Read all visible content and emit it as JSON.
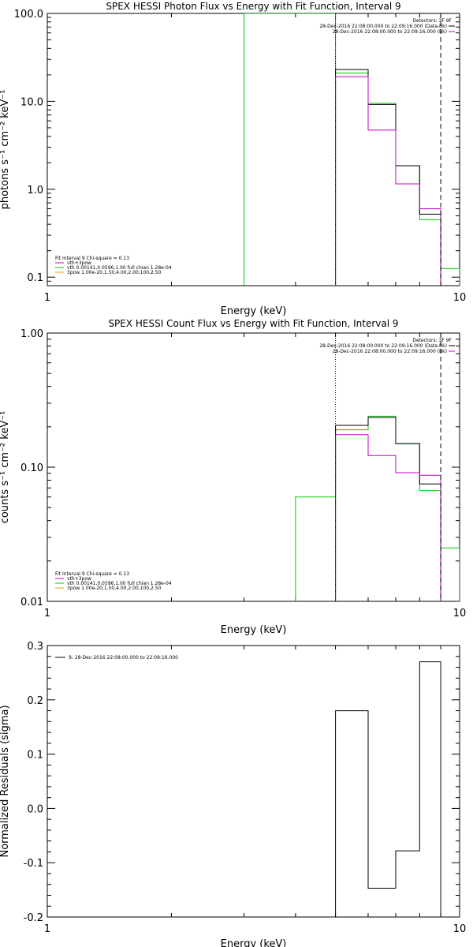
{
  "colors": {
    "black": "#000000",
    "magenta": "#cc00cc",
    "green": "#00cc00",
    "orange": "#ff9900"
  },
  "chart_data": [
    {
      "type": "line",
      "title": "SPEX HESSI Photon Flux vs Energy with Fit Function, Interval 9",
      "xlabel": "Energy (keV)",
      "ylabel": "photons s⁻¹ cm⁻² keV⁻¹",
      "xscale": "log",
      "yscale": "log",
      "xlim": [
        1,
        10
      ],
      "ylim": [
        0.08,
        100
      ],
      "xticks": [
        {
          "v": 1,
          "t": "1"
        },
        {
          "v": 10,
          "t": "10"
        }
      ],
      "yticks": [
        {
          "v": 100,
          "t": "100.0"
        },
        {
          "v": 10,
          "t": "10.0"
        },
        {
          "v": 1,
          "t": "1.0"
        },
        {
          "v": 0.1,
          "t": "0.1"
        }
      ],
      "vlines": [
        {
          "x": 5.0,
          "style": "dotted"
        },
        {
          "x": 9.0,
          "style": "dashed"
        }
      ],
      "legend_top": {
        "header": "Detectors: 3F 9F",
        "entries": [
          {
            "text": "28-Dec-2016 22:08:00.000 to 22:09:16.000 (Data-Bk)",
            "color": "#000000"
          },
          {
            "text": "28-Dec-2016 22:08:00.000 to 22:09:16.000 (Bk)",
            "color": "#cc00cc"
          }
        ]
      },
      "legend_bottom": {
        "header": "Fit Interval 9    Chi-square = 0.13",
        "entries": [
          {
            "text": "vth+3pow",
            "color": "#cc00cc"
          },
          {
            "text": "vth 0.00141,0.0596,1.00  full chian 1.28e-04",
            "color": "#00cc00"
          },
          {
            "text": "3pow 1.00e-20,1.50,4.00,2.00,100,2.50",
            "color": "#ff9900"
          }
        ]
      },
      "series": [
        {
          "color": "#00cc00",
          "edges": [
            3.0,
            4.0,
            5.0,
            6.0,
            7.0,
            8.0,
            9.0,
            10.0
          ],
          "values": [
            150,
            100,
            21,
            9.5,
            1.85,
            0.45,
            0.125
          ]
        },
        {
          "color": "#000000",
          "edges": [
            5.0,
            6.0,
            7.0,
            8.0,
            9.0
          ],
          "values": [
            23,
            9.2,
            1.85,
            0.52
          ]
        },
        {
          "color": "#cc00cc",
          "edges": [
            5.0,
            6.0,
            7.0,
            8.0,
            9.0
          ],
          "values": [
            19,
            4.7,
            1.15,
            0.6
          ]
        }
      ]
    },
    {
      "type": "line",
      "title": "SPEX HESSI Count Flux vs Energy with Fit Function, Interval 9",
      "xlabel": "Energy (keV)",
      "ylabel": "counts s⁻¹ cm⁻² keV⁻¹",
      "xscale": "log",
      "yscale": "log",
      "xlim": [
        1,
        10
      ],
      "ylim": [
        0.01,
        1.0
      ],
      "xticks": [
        {
          "v": 1,
          "t": "1"
        },
        {
          "v": 10,
          "t": "10"
        }
      ],
      "yticks": [
        {
          "v": 1.0,
          "t": "1.00"
        },
        {
          "v": 0.1,
          "t": "0.10"
        },
        {
          "v": 0.01,
          "t": "0.01"
        }
      ],
      "vlines": [
        {
          "x": 5.0,
          "style": "dotted"
        },
        {
          "x": 9.0,
          "style": "dashed"
        }
      ],
      "legend_top": {
        "header": "Detectors: 3F 9F",
        "entries": [
          {
            "text": "28-Dec-2016 22:08:00.000 to 22:09:16.000 (Data-Bk)",
            "color": "#000000"
          },
          {
            "text": "28-Dec-2016 22:08:00.000 to 22:09:16.000 (Bk)",
            "color": "#cc00cc"
          }
        ]
      },
      "legend_bottom": {
        "header": "Fit Interval 9    Chi-square = 0.13",
        "entries": [
          {
            "text": "vth+3pow",
            "color": "#cc00cc"
          },
          {
            "text": "vth 0.00141,0.0596,1.00  full chian 1.28e-04",
            "color": "#00cc00"
          },
          {
            "text": "3pow 1.00e-20,1.50,4.00,2.00,100,2.50",
            "color": "#ff9900"
          }
        ]
      },
      "series": [
        {
          "color": "#00cc00",
          "edges": [
            4.0,
            5.0,
            6.0,
            7.0,
            8.0,
            9.0,
            10.0
          ],
          "values": [
            0.06,
            0.19,
            0.24,
            0.15,
            0.067,
            0.025
          ]
        },
        {
          "color": "#000000",
          "edges": [
            5.0,
            6.0,
            7.0,
            8.0,
            9.0
          ],
          "values": [
            0.205,
            0.235,
            0.15,
            0.075
          ]
        },
        {
          "color": "#cc00cc",
          "edges": [
            5.0,
            6.0,
            7.0,
            8.0,
            9.0
          ],
          "values": [
            0.175,
            0.122,
            0.091,
            0.087
          ]
        }
      ]
    },
    {
      "type": "line",
      "title": "",
      "xlabel": "Energy (keV)",
      "ylabel": "Normalized Residuals (sigma)",
      "xscale": "log",
      "yscale": "linear",
      "xlim": [
        1,
        10
      ],
      "ylim": [
        -0.2,
        0.3
      ],
      "xticks": [
        {
          "v": 1,
          "t": "1"
        },
        {
          "v": 10,
          "t": "10"
        }
      ],
      "yticks": [
        {
          "v": 0.3,
          "t": "0.3"
        },
        {
          "v": 0.2,
          "t": "0.2"
        },
        {
          "v": 0.1,
          "t": "0.1"
        },
        {
          "v": 0.0,
          "t": "0.0"
        },
        {
          "v": -0.1,
          "t": "-0.1"
        },
        {
          "v": -0.2,
          "t": "-0.2"
        }
      ],
      "vlines": [],
      "legend_top": {
        "header": "",
        "entries": [
          {
            "text": "9: 28-Dec-2016 22:08:00.000 to 22:09:16.000",
            "color": "#000000"
          }
        ]
      },
      "series": [
        {
          "color": "#000000",
          "edges": [
            5.0,
            6.0,
            7.0,
            8.0,
            9.0
          ],
          "values": [
            0.18,
            -0.147,
            -0.078,
            0.27
          ]
        }
      ]
    }
  ]
}
